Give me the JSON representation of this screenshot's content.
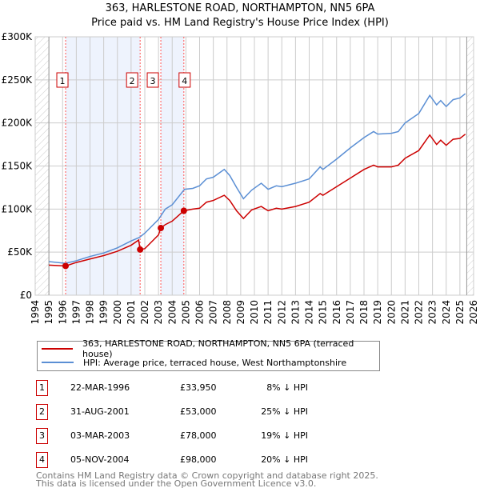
{
  "title": "363, HARLESTONE ROAD, NORTHAMPTON, NN5 6PA",
  "subtitle": "Price paid vs. HM Land Registry's House Price Index (HPI)",
  "colors": {
    "property": "#cc0000",
    "hpi": "#5b8fd4",
    "shade": "#eef3fd"
  },
  "chart_data": {
    "type": "line",
    "ylim": [
      0,
      300000
    ],
    "xlim": [
      1994,
      2026
    ],
    "yticks": [
      {
        "v": 0,
        "label": "£0"
      },
      {
        "v": 50000,
        "label": "£50K"
      },
      {
        "v": 100000,
        "label": "£100K"
      },
      {
        "v": 150000,
        "label": "£150K"
      },
      {
        "v": 200000,
        "label": "£200K"
      },
      {
        "v": 250000,
        "label": "£250K"
      },
      {
        "v": 300000,
        "label": "£300K"
      }
    ],
    "xticks": [
      "1994",
      "1995",
      "1996",
      "1997",
      "1998",
      "1999",
      "2000",
      "2001",
      "2002",
      "2003",
      "2004",
      "2005",
      "2006",
      "2007",
      "2008",
      "2009",
      "2010",
      "2011",
      "2012",
      "2013",
      "2014",
      "2015",
      "2016",
      "2017",
      "2018",
      "2019",
      "2020",
      "2021",
      "2022",
      "2023",
      "2024",
      "2025",
      "2026"
    ],
    "grid": true,
    "series": [
      {
        "name": "363, HARLESTONE ROAD, NORTHAMPTON, NN5 6PA (terraced house)",
        "color": "#cc0000",
        "points": [
          [
            1995,
            35000
          ],
          [
            1996.22,
            33950
          ],
          [
            1997,
            38000
          ],
          [
            1998,
            42000
          ],
          [
            1999,
            46000
          ],
          [
            2000,
            51000
          ],
          [
            2001,
            58000
          ],
          [
            2001.55,
            64000
          ],
          [
            2001.66,
            53000
          ],
          [
            2002,
            54000
          ],
          [
            2003,
            70000
          ],
          [
            2003.17,
            78000
          ],
          [
            2003.5,
            82000
          ],
          [
            2004,
            86000
          ],
          [
            2004.85,
            98000
          ],
          [
            2005.5,
            100000
          ],
          [
            2006,
            101000
          ],
          [
            2006.5,
            108000
          ],
          [
            2007,
            110000
          ],
          [
            2007.8,
            116000
          ],
          [
            2008.2,
            110000
          ],
          [
            2008.7,
            98000
          ],
          [
            2009.2,
            89000
          ],
          [
            2009.8,
            99000
          ],
          [
            2010.5,
            103000
          ],
          [
            2011,
            98000
          ],
          [
            2011.6,
            101000
          ],
          [
            2012,
            100000
          ],
          [
            2013,
            103000
          ],
          [
            2014,
            108000
          ],
          [
            2014.8,
            118000
          ],
          [
            2015,
            116000
          ],
          [
            2016,
            126000
          ],
          [
            2017,
            136000
          ],
          [
            2018,
            146000
          ],
          [
            2018.7,
            151000
          ],
          [
            2019,
            149000
          ],
          [
            2020,
            149000
          ],
          [
            2020.5,
            151000
          ],
          [
            2021,
            159000
          ],
          [
            2022,
            168000
          ],
          [
            2022.8,
            186000
          ],
          [
            2023.3,
            175000
          ],
          [
            2023.6,
            180000
          ],
          [
            2024,
            174000
          ],
          [
            2024.5,
            181000
          ],
          [
            2025,
            182000
          ],
          [
            2025.4,
            187000
          ]
        ]
      },
      {
        "name": "HPI: Average price, terraced house, West Northamptonshire",
        "color": "#5b8fd4",
        "points": [
          [
            1995,
            39000
          ],
          [
            1996.2,
            37000
          ],
          [
            1997,
            40000
          ],
          [
            1998,
            45000
          ],
          [
            1999,
            49000
          ],
          [
            2000,
            55000
          ],
          [
            2001,
            63000
          ],
          [
            2001.6,
            67000
          ],
          [
            2002,
            72000
          ],
          [
            2003,
            88000
          ],
          [
            2003.5,
            100000
          ],
          [
            2004,
            105000
          ],
          [
            2004.9,
            123000
          ],
          [
            2005.5,
            124000
          ],
          [
            2006,
            127000
          ],
          [
            2006.5,
            135000
          ],
          [
            2007,
            137000
          ],
          [
            2007.8,
            146000
          ],
          [
            2008.2,
            139000
          ],
          [
            2008.7,
            125000
          ],
          [
            2009.2,
            112000
          ],
          [
            2009.8,
            122000
          ],
          [
            2010.5,
            130000
          ],
          [
            2011,
            123000
          ],
          [
            2011.6,
            127000
          ],
          [
            2012,
            126000
          ],
          [
            2013,
            130000
          ],
          [
            2014,
            135000
          ],
          [
            2014.8,
            149000
          ],
          [
            2015,
            146000
          ],
          [
            2016,
            158000
          ],
          [
            2017,
            171000
          ],
          [
            2018,
            183000
          ],
          [
            2018.7,
            190000
          ],
          [
            2019,
            187000
          ],
          [
            2020,
            188000
          ],
          [
            2020.5,
            190000
          ],
          [
            2021,
            200000
          ],
          [
            2022,
            211000
          ],
          [
            2022.8,
            232000
          ],
          [
            2023.3,
            221000
          ],
          [
            2023.6,
            226000
          ],
          [
            2024,
            219000
          ],
          [
            2024.5,
            227000
          ],
          [
            2025,
            229000
          ],
          [
            2025.4,
            234000
          ]
        ]
      }
    ],
    "sales": [
      {
        "n": "1",
        "x": 1996.22,
        "y": 33950
      },
      {
        "n": "2",
        "x": 2001.66,
        "y": 53000
      },
      {
        "n": "3",
        "x": 2003.17,
        "y": 78000
      },
      {
        "n": "4",
        "x": 2004.85,
        "y": 98000
      }
    ]
  },
  "legend": [
    "363, HARLESTONE ROAD, NORTHAMPTON, NN5 6PA (terraced house)",
    "HPI: Average price, terraced house, West Northamptonshire"
  ],
  "transactions": [
    {
      "n": "1",
      "date": "22-MAR-1996",
      "price": "£33,950",
      "hpi": "8% ↓ HPI"
    },
    {
      "n": "2",
      "date": "31-AUG-2001",
      "price": "£53,000",
      "hpi": "25% ↓ HPI"
    },
    {
      "n": "3",
      "date": "03-MAR-2003",
      "price": "£78,000",
      "hpi": "19% ↓ HPI"
    },
    {
      "n": "4",
      "date": "05-NOV-2004",
      "price": "£98,000",
      "hpi": "20% ↓ HPI"
    }
  ],
  "footer": [
    "Contains HM Land Registry data © Crown copyright and database right 2025.",
    "This data is licensed under the Open Government Licence v3.0."
  ]
}
